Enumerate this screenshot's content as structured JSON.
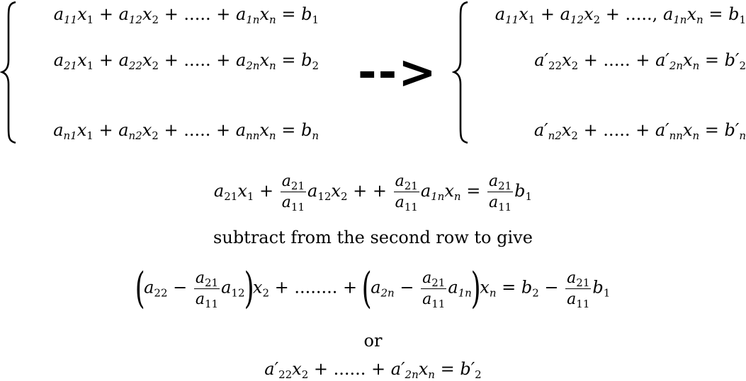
{
  "left_system": {
    "row1": {
      "t1": "a",
      "s1": "11",
      "x1": "x",
      "xs1": "1",
      "op1": " + ",
      "t2": "a",
      "s2": "12",
      "x2": "x",
      "xs2": "2",
      "mid": " + ..... + ",
      "t3": "a",
      "s3": "1n",
      "x3": "x",
      "xs3": "n",
      "eq": " = ",
      "b": "b",
      "bs": "1"
    },
    "row2": {
      "t1": "a",
      "s1": "21",
      "x1": "x",
      "xs1": "1",
      "op1": " + ",
      "t2": "a",
      "s2": "22",
      "x2": "x",
      "xs2": "2",
      "mid": " + ..... + ",
      "t3": "a",
      "s3": "2n",
      "x3": "x",
      "xs3": "n",
      "eq": " = ",
      "b": "b",
      "bs": "2"
    },
    "row3": {
      "t1": "a",
      "s1": "n1",
      "x1": "x",
      "xs1": "1",
      "op1": " + ",
      "t2": "a",
      "s2": "n2",
      "x2": "x",
      "xs2": "2",
      "mid": " + ..... + ",
      "t3": "a",
      "s3": "nn",
      "x3": "x",
      "xs3": "n",
      "eq": " = ",
      "b": "b",
      "bs": "n"
    }
  },
  "arrow": "-->",
  "right_system": {
    "row1": {
      "t1": "a",
      "s1": "11",
      "x1": "x",
      "xs1": "1",
      "op1": " + ",
      "t2": "a",
      "s2": "12",
      "x2": "x",
      "xs2": "2",
      "mid": " + ....., ",
      "t3": "a",
      "s3": "1n",
      "x3": "x",
      "xs3": "n",
      "eq": " = ",
      "b": "b",
      "bs": "1"
    },
    "row2": {
      "t2": "a′",
      "s2": "22",
      "x2": "x",
      "xs2": "2",
      "mid": " + ..... + ",
      "t3": "a′",
      "s3": "2n",
      "x3": "x",
      "xs3": "n",
      "eq": " = ",
      "b": "b′",
      "bs": "2"
    },
    "row3": {
      "t2": "a′",
      "s2": "n2",
      "x2": "x",
      "xs2": "2",
      "mid": " + ..... + ",
      "t3": "a′",
      "s3": "nn",
      "x3": "x",
      "xs3": "n",
      "eq": " = ",
      "b": "b′",
      "bs": "n"
    }
  },
  "eq_scaled": {
    "a": "a",
    "s21": "21",
    "x": "x",
    "s1": "1",
    "plus": " + ",
    "plus_plus": " + + ",
    "frac_num": "a",
    "frac_num_s": "21",
    "frac_den": "a",
    "frac_den_s": "11",
    "s12": "12",
    "s2": "2",
    "s1n": "1n",
    "sn": "n",
    "eq": " = ",
    "b": "b",
    "bs": "1"
  },
  "subtract_text": "subtract from the second row to give",
  "eq_subtracted": {
    "a": "a",
    "s22": "22",
    "minus": " − ",
    "s12": "12",
    "x": "x",
    "s2": "2",
    "dots": " + ........ + ",
    "s2n": "2n",
    "s1n": "1n",
    "sn": "n",
    "eq": " = ",
    "b": "b",
    "bs2": "2",
    "bs1": "1",
    "frac_num": "a",
    "frac_num_s": "21",
    "frac_den": "a",
    "frac_den_s": "11",
    "lparen": "(",
    "rparen": ")"
  },
  "or_text": "or",
  "eq_final": {
    "t1": "a′",
    "s1": "22",
    "x": "x",
    "xs1": "2",
    "mid": " + ...... + ",
    "t2": "a′",
    "s2": "2n",
    "xs2": "n",
    "eq": " = ",
    "b": "b′",
    "bs": "2"
  }
}
